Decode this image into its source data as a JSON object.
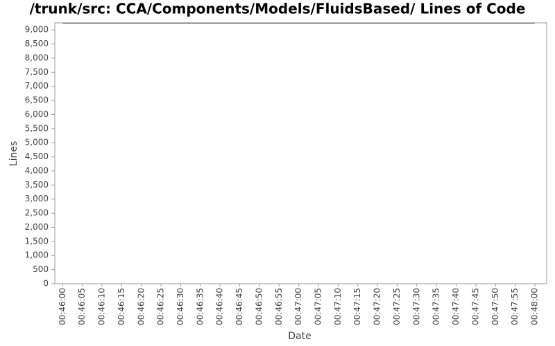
{
  "chart_data": {
    "type": "line",
    "title": "/trunk/src: CCA/Components/Models/FluidsBased/ Lines of Code",
    "x_label": "Date",
    "y_label": "Lines",
    "x": [
      "00:46:00",
      "00:48:00"
    ],
    "series": [
      {
        "name": "Lines",
        "color": "#8b1a1a",
        "values": [
          9240,
          9240
        ]
      }
    ],
    "xlim": [
      "00:45:58",
      "00:48:03"
    ],
    "xticks": [
      "00:46:00",
      "00:46:05",
      "00:46:10",
      "00:46:15",
      "00:46:20",
      "00:46:25",
      "00:46:30",
      "00:46:35",
      "00:46:40",
      "00:46:45",
      "00:46:50",
      "00:46:55",
      "00:47:00",
      "00:47:05",
      "00:47:10",
      "00:47:15",
      "00:47:20",
      "00:47:25",
      "00:47:30",
      "00:47:35",
      "00:47:40",
      "00:47:45",
      "00:47:50",
      "00:47:55",
      "00:48:00"
    ],
    "ylim": [
      0,
      9250
    ],
    "yticks": [
      0,
      500,
      {
        "value": 1000,
        "label": "1,000"
      },
      {
        "value": 1500,
        "label": "1,500"
      },
      {
        "value": 2000,
        "label": "2,000"
      },
      {
        "value": 2500,
        "label": "2,500"
      },
      {
        "value": 3000,
        "label": "3,000"
      },
      {
        "value": 3500,
        "label": "3,500"
      },
      {
        "value": 4000,
        "label": "4,000"
      },
      {
        "value": 4500,
        "label": "4,500"
      },
      {
        "value": 5000,
        "label": "5,000"
      },
      {
        "value": 5500,
        "label": "5,500"
      },
      {
        "value": 6000,
        "label": "6,000"
      },
      {
        "value": 6500,
        "label": "6,500"
      },
      {
        "value": 7000,
        "label": "7,000"
      },
      {
        "value": 7500,
        "label": "7,500"
      },
      {
        "value": 8000,
        "label": "8,000"
      },
      {
        "value": 8500,
        "label": "8,500"
      },
      {
        "value": 9000,
        "label": "9,000"
      }
    ]
  }
}
